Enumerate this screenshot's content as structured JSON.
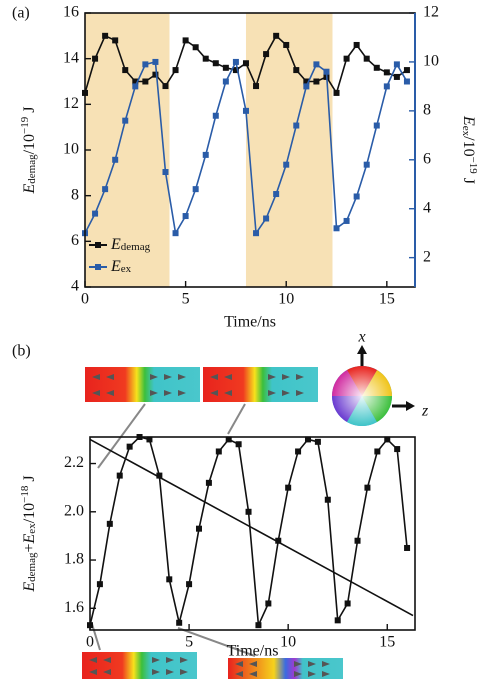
{
  "chart_data": [
    {
      "type": "line",
      "panel_label": "(a)",
      "x": [
        0,
        0.5,
        1,
        1.5,
        2,
        2.5,
        3,
        3.5,
        4,
        4.5,
        5,
        5.5,
        6,
        6.5,
        7,
        7.5,
        8,
        8.5,
        9,
        9.5,
        10,
        10.5,
        11,
        11.5,
        12,
        12.5,
        13,
        13.5,
        14,
        14.5,
        15,
        15.5,
        16
      ],
      "xlim": [
        0,
        16.4
      ],
      "xticks": [
        0,
        5,
        10,
        15
      ],
      "ylim": [
        4,
        16
      ],
      "yticks": [
        4,
        6,
        8,
        10,
        12,
        14,
        16
      ],
      "y2lim": [
        0.8,
        12
      ],
      "y2ticks": [
        2,
        4,
        6,
        8,
        10,
        12
      ],
      "y2color": "#2a5ca8",
      "xlabel": "Time/ns",
      "ylabel": [
        {
          "text": "E",
          "style": "italic"
        },
        {
          "text": "demag",
          "style": "sub"
        },
        {
          "text": "/10"
        },
        {
          "text": "−19",
          "style": "sup"
        },
        {
          "text": " J"
        }
      ],
      "y2label": [
        {
          "text": "E",
          "style": "italic"
        },
        {
          "text": "ex",
          "style": "sub"
        },
        {
          "text": "/10"
        },
        {
          "text": "−19",
          "style": "sup"
        },
        {
          "text": " J"
        }
      ],
      "shaded_spans": [
        [
          0,
          4.2
        ],
        [
          8,
          12.3
        ]
      ],
      "shade_color": "#f7e1b5",
      "series": [
        {
          "name": [
            {
              "text": "E",
              "style": "italic"
            },
            {
              "text": "demag",
              "style": "sub"
            }
          ],
          "color": "#111111",
          "values": [
            12.5,
            14.0,
            15.0,
            14.8,
            13.5,
            13.0,
            13.0,
            13.3,
            12.8,
            13.5,
            14.8,
            14.5,
            14.0,
            13.8,
            13.6,
            13.5,
            13.8,
            12.8,
            14.2,
            15.0,
            14.6,
            13.5,
            13.0,
            13.0,
            13.2,
            12.5,
            14.0,
            14.6,
            14.0,
            13.6,
            13.4,
            13.2,
            13.5
          ]
        },
        {
          "name": [
            {
              "text": "E",
              "style": "italic"
            },
            {
              "text": "ex",
              "style": "sub"
            }
          ],
          "color": "#2a5ca8",
          "axis": "y2",
          "values": [
            3.0,
            3.8,
            4.8,
            6.0,
            7.6,
            9.0,
            9.9,
            10.0,
            5.5,
            3.0,
            3.7,
            4.8,
            6.2,
            7.8,
            9.2,
            10.0,
            8.0,
            3.0,
            3.6,
            4.6,
            5.8,
            7.4,
            9.0,
            9.9,
            9.6,
            3.2,
            3.5,
            4.5,
            5.8,
            7.4,
            9.0,
            9.9,
            9.2
          ]
        }
      ]
    },
    {
      "type": "line",
      "panel_label": "(b)",
      "x": [
        0,
        0.5,
        1,
        1.5,
        2,
        2.5,
        3,
        3.5,
        4,
        4.5,
        5,
        5.5,
        6,
        6.5,
        7,
        7.5,
        8,
        8.5,
        9,
        9.5,
        10,
        10.5,
        11,
        11.5,
        12,
        12.5,
        13,
        13.5,
        14,
        14.5,
        15,
        15.5,
        16
      ],
      "xlim": [
        0,
        16.4
      ],
      "xticks": [
        0,
        5,
        10,
        15
      ],
      "ylim": [
        1.51,
        2.31
      ],
      "yticks": [
        1.6,
        1.8,
        {
          "value": 2,
          "label": "2.0"
        },
        2.2
      ],
      "xlabel": "Time/ns",
      "ylabel": [
        {
          "text": "E",
          "style": "italic"
        },
        {
          "text": "demag",
          "style": "sub"
        },
        {
          "text": "+"
        },
        {
          "text": "E",
          "style": "italic"
        },
        {
          "text": "ex",
          "style": "sub"
        },
        {
          "text": "/10"
        },
        {
          "text": "−18",
          "style": "sup"
        },
        {
          "text": " J"
        }
      ],
      "axis_x_name": "x",
      "axis_z_name": "z",
      "trend_line": {
        "x": [
          0,
          16.3
        ],
        "y": [
          2.3,
          1.57
        ]
      },
      "series": [
        {
          "color": "#111111",
          "values": [
            1.53,
            1.7,
            1.95,
            2.15,
            2.27,
            2.31,
            2.3,
            2.15,
            1.72,
            1.54,
            1.7,
            1.93,
            2.12,
            2.25,
            2.3,
            2.28,
            2.0,
            1.53,
            1.62,
            1.88,
            2.1,
            2.25,
            2.3,
            2.29,
            2.05,
            1.55,
            1.62,
            1.88,
            2.1,
            2.25,
            2.3,
            2.26,
            1.85
          ]
        }
      ]
    }
  ]
}
